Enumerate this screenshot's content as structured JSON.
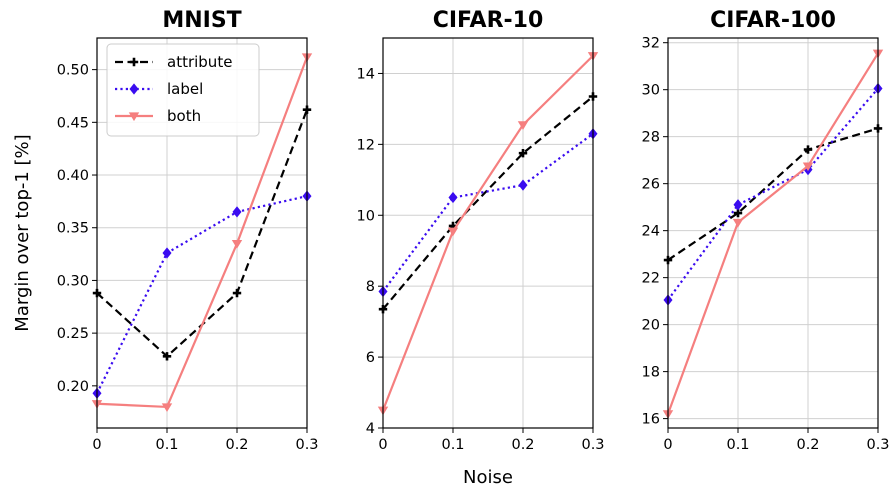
{
  "figure": {
    "ylabel": "Margin over top-1 [%]",
    "xlabel": "Noise"
  },
  "legend": {
    "placement": "top-left of first panel",
    "entries": [
      "attribute",
      "label",
      "both"
    ]
  },
  "colors": {
    "attribute": "#000000",
    "label": "#3a0cf0",
    "both": "#f57f7f",
    "grid": "#d0d0d0"
  },
  "chart_data": [
    {
      "type": "line",
      "title": "MNIST",
      "x": [
        0,
        0.1,
        0.2,
        0.3
      ],
      "xticks": [
        "0",
        "0.1",
        "0.2",
        "0.3"
      ],
      "xlim": [
        0,
        0.3
      ],
      "ylim": [
        0.16,
        0.53
      ],
      "yticks": [
        "0.20",
        "0.25",
        "0.30",
        "0.35",
        "0.40",
        "0.45",
        "0.50"
      ],
      "ytick_values": [
        0.2,
        0.25,
        0.3,
        0.35,
        0.4,
        0.45,
        0.5
      ],
      "grid": true,
      "series": [
        {
          "name": "attribute",
          "style": "dashed",
          "marker": "plus",
          "values": [
            0.288,
            0.228,
            0.288,
            0.462
          ]
        },
        {
          "name": "label",
          "style": "dotted",
          "marker": "diamond",
          "values": [
            0.193,
            0.326,
            0.365,
            0.38
          ]
        },
        {
          "name": "both",
          "style": "solid",
          "marker": "triangle-down",
          "values": [
            0.183,
            0.18,
            0.335,
            0.512
          ]
        }
      ]
    },
    {
      "type": "line",
      "title": "CIFAR-10",
      "x": [
        0,
        0.1,
        0.2,
        0.3
      ],
      "xticks": [
        "0",
        "0.1",
        "0.2",
        "0.3"
      ],
      "xlim": [
        0,
        0.3
      ],
      "ylim": [
        4,
        15
      ],
      "yticks": [
        "4",
        "6",
        "8",
        "10",
        "12",
        "14"
      ],
      "ytick_values": [
        4,
        6,
        8,
        10,
        12,
        14
      ],
      "grid": true,
      "series": [
        {
          "name": "attribute",
          "style": "dashed",
          "marker": "plus",
          "values": [
            7.35,
            9.7,
            11.75,
            13.35
          ]
        },
        {
          "name": "label",
          "style": "dotted",
          "marker": "diamond",
          "values": [
            7.85,
            10.5,
            10.85,
            12.3
          ]
        },
        {
          "name": "both",
          "style": "solid",
          "marker": "triangle-down",
          "values": [
            4.5,
            9.55,
            12.55,
            14.5
          ]
        }
      ]
    },
    {
      "type": "line",
      "title": "CIFAR-100",
      "x": [
        0,
        0.1,
        0.2,
        0.3
      ],
      "xticks": [
        "0",
        "0.1",
        "0.2",
        "0.3"
      ],
      "xlim": [
        0,
        0.3
      ],
      "ylim": [
        15.6,
        32.2
      ],
      "yticks": [
        "16",
        "18",
        "20",
        "22",
        "24",
        "26",
        "28",
        "30",
        "32"
      ],
      "ytick_values": [
        16,
        18,
        20,
        22,
        24,
        26,
        28,
        30,
        32
      ],
      "grid": true,
      "series": [
        {
          "name": "attribute",
          "style": "dashed",
          "marker": "plus",
          "values": [
            22.75,
            24.75,
            27.45,
            28.35
          ]
        },
        {
          "name": "label",
          "style": "dotted",
          "marker": "diamond",
          "values": [
            21.05,
            25.1,
            26.6,
            30.05
          ]
        },
        {
          "name": "both",
          "style": "solid",
          "marker": "triangle-down",
          "values": [
            16.2,
            24.35,
            26.75,
            31.55
          ]
        }
      ]
    }
  ]
}
